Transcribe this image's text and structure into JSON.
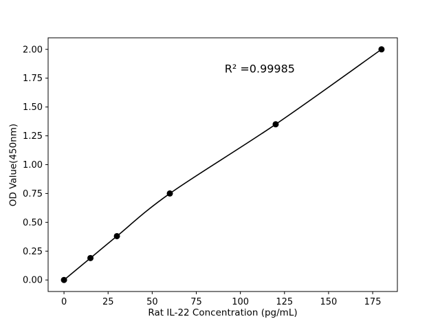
{
  "chart_data": {
    "type": "scatter",
    "title": "",
    "xlabel": "Rat IL-22 Concentration (pg/mL)",
    "ylabel": "OD Value(450nm)",
    "annotation": {
      "text": "R² =0.99985",
      "x": 111,
      "y": 1.83
    },
    "x": [
      0,
      15,
      30,
      60,
      120,
      180
    ],
    "y": [
      0.0,
      0.19,
      0.38,
      0.75,
      1.35,
      2.0
    ],
    "fit_line": true,
    "xlim": [
      -9,
      189
    ],
    "ylim": [
      -0.1,
      2.1
    ],
    "xticks": [
      0,
      25,
      50,
      75,
      100,
      125,
      150,
      175
    ],
    "xtick_labels": [
      "0",
      "25",
      "50",
      "75",
      "100",
      "125",
      "150",
      "175"
    ],
    "yticks": [
      0.0,
      0.25,
      0.5,
      0.75,
      1.0,
      1.25,
      1.5,
      1.75,
      2.0
    ],
    "ytick_labels": [
      "0.00",
      "0.25",
      "0.50",
      "0.75",
      "1.00",
      "1.25",
      "1.50",
      "1.75",
      "2.00"
    ],
    "grid": false,
    "legend": null,
    "line_color": "#000000",
    "marker_color": "#000000",
    "background_color": "#ffffff"
  }
}
